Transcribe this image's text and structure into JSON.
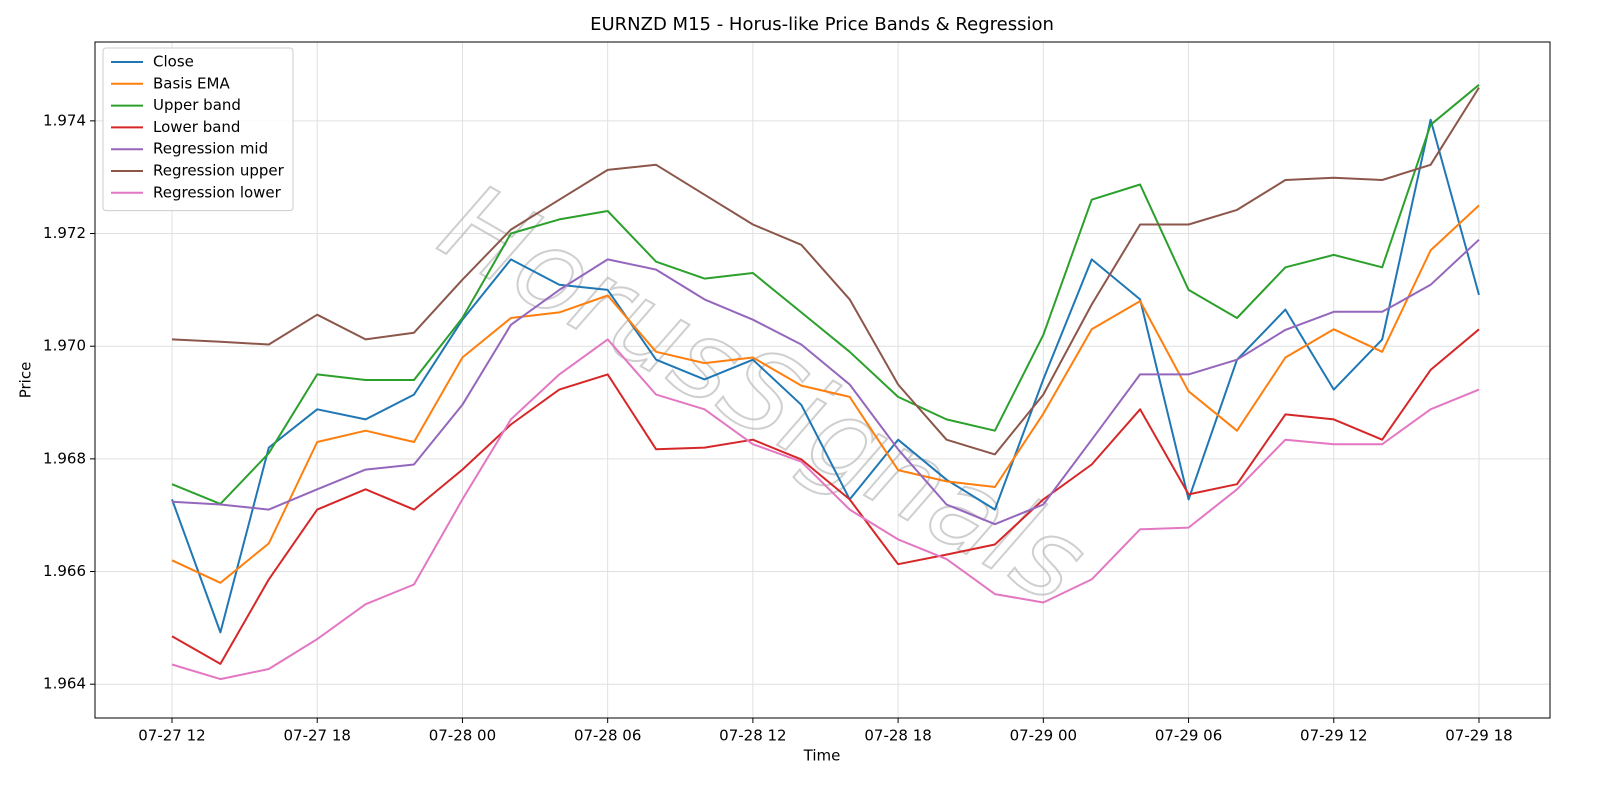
{
  "chart_data": {
    "type": "line",
    "title": "EURNZD M15 - Horus-like Price Bands & Regression",
    "xlabel": "Time",
    "ylabel": "Price",
    "watermark": "HorusSignals",
    "x": [
      "07-27 12",
      "07-27 14",
      "07-27 16",
      "07-27 18",
      "07-27 20",
      "07-27 22",
      "07-28 00",
      "07-28 02",
      "07-28 04",
      "07-28 06",
      "07-28 08",
      "07-28 10",
      "07-28 12",
      "07-28 14",
      "07-28 16",
      "07-28 18",
      "07-28 20",
      "07-28 22",
      "07-29 00",
      "07-29 02",
      "07-29 04",
      "07-29 06",
      "07-29 08",
      "07-29 10",
      "07-29 12",
      "07-29 14",
      "07-29 16",
      "07-29 18"
    ],
    "series": [
      {
        "name": "Close",
        "color": "#1f77b4",
        "values": [
          1.96728,
          1.96492,
          1.9682,
          1.96888,
          1.9687,
          1.96914,
          1.97047,
          1.97154,
          1.97109,
          1.971,
          1.96976,
          1.96941,
          1.96976,
          1.96896,
          1.96728,
          1.96834,
          1.96763,
          1.9671,
          1.96941,
          1.97154,
          1.97083,
          1.96728,
          1.96976,
          1.97065,
          1.96923,
          1.97012,
          1.97402,
          1.97091
        ]
      },
      {
        "name": "Basis EMA",
        "color": "#ff7f0e",
        "values": [
          1.9662,
          1.9658,
          1.9665,
          1.9683,
          1.9685,
          1.9683,
          1.9698,
          1.9705,
          1.9706,
          1.9709,
          1.9699,
          1.9697,
          1.9698,
          1.9693,
          1.9691,
          1.9678,
          1.9676,
          1.9675,
          1.9688,
          1.9703,
          1.9708,
          1.9692,
          1.9685,
          1.9698,
          1.9703,
          1.9699,
          1.9717,
          1.9725
        ]
      },
      {
        "name": "Upper band",
        "color": "#2ca02c",
        "values": [
          1.96755,
          1.9672,
          1.9681,
          1.9695,
          1.9694,
          1.9694,
          1.9705,
          1.972,
          1.97225,
          1.9724,
          1.9715,
          1.9712,
          1.9713,
          1.9706,
          1.9699,
          1.9691,
          1.9687,
          1.9685,
          1.9702,
          1.9726,
          1.97287,
          1.971,
          1.9705,
          1.9714,
          1.97162,
          1.9714,
          1.97393,
          1.97464
        ]
      },
      {
        "name": "Lower band",
        "color": "#d62728",
        "values": [
          1.96485,
          1.96436,
          1.96586,
          1.9671,
          1.96746,
          1.9671,
          1.96781,
          1.96861,
          1.96923,
          1.9695,
          1.96817,
          1.9682,
          1.96834,
          1.96799,
          1.96728,
          1.96613,
          1.9663,
          1.96648,
          1.96728,
          1.9679,
          1.96888,
          1.96737,
          1.96755,
          1.96879,
          1.9687,
          1.96834,
          1.96958,
          1.9703
        ]
      },
      {
        "name": "Regression mid",
        "color": "#9467bd",
        "values": [
          1.96724,
          1.96719,
          1.9671,
          1.96746,
          1.96781,
          1.9679,
          1.96896,
          1.97038,
          1.971,
          1.97154,
          1.97136,
          1.97083,
          1.97047,
          1.97003,
          1.96932,
          1.96817,
          1.96719,
          1.96684,
          1.96719,
          1.96834,
          1.9695,
          1.9695,
          1.96976,
          1.97029,
          1.97061,
          1.97061,
          1.97109,
          1.97189
        ]
      },
      {
        "name": "Regression upper",
        "color": "#8c564b",
        "values": [
          1.97012,
          1.97008,
          1.97003,
          1.97056,
          1.97012,
          1.97024,
          1.97118,
          1.97207,
          1.9726,
          1.97313,
          1.97322,
          1.97269,
          1.97216,
          1.9718,
          1.97083,
          1.96932,
          1.96834,
          1.96808,
          1.96914,
          1.97074,
          1.97216,
          1.97216,
          1.97242,
          1.97295,
          1.97299,
          1.97295,
          1.97322,
          1.97459
        ]
      },
      {
        "name": "Regression lower",
        "color": "#e377c2",
        "values": [
          1.96435,
          1.96409,
          1.96427,
          1.9648,
          1.96542,
          1.96577,
          1.96728,
          1.9687,
          1.9695,
          1.97012,
          1.96914,
          1.96888,
          1.96826,
          1.96795,
          1.9671,
          1.96657,
          1.96622,
          1.9656,
          1.96545,
          1.96586,
          1.96675,
          1.96678,
          1.96746,
          1.96834,
          1.96826,
          1.96826,
          1.96888,
          1.96923
        ]
      }
    ],
    "ylim": [
      1.9634,
      1.9754
    ],
    "yticks": [
      1.964,
      1.966,
      1.968,
      {
        "value": 1.97,
        "label": "1.970"
      },
      1.972,
      1.974
    ],
    "xticks": [
      "07-27 12",
      "07-27 18",
      "07-28 00",
      "07-28 06",
      "07-28 12",
      "07-28 18",
      "07-29 00",
      "07-29 06",
      "07-29 12",
      "07-29 18"
    ],
    "grid": true,
    "legend": "upper left"
  }
}
